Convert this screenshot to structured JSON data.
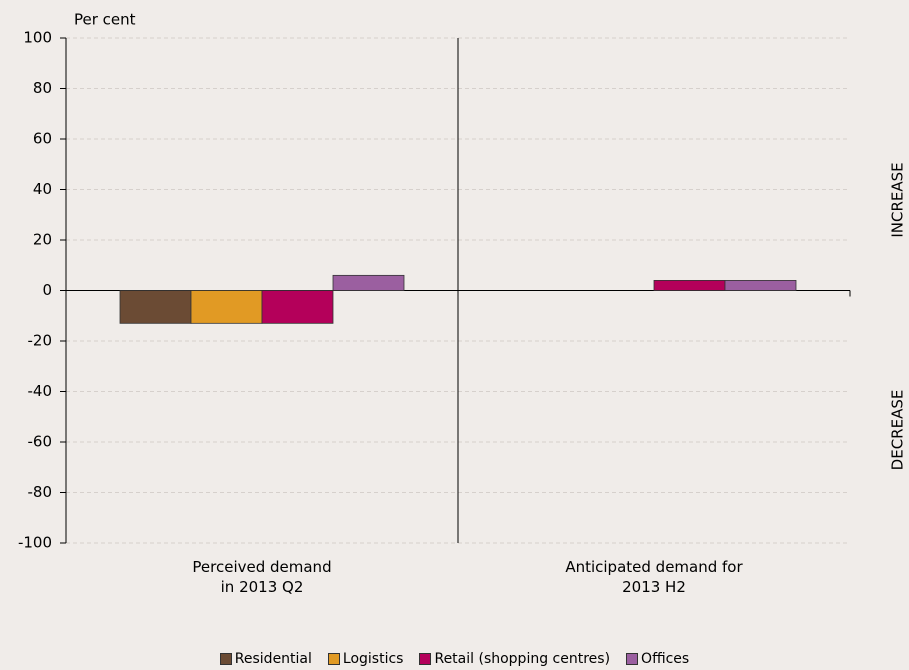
{
  "chart_data": {
    "type": "bar",
    "y_axis_label": "Per cent",
    "annotations": [
      "INCREASE",
      "DECREASE"
    ],
    "categories": [
      "Perceived demand\nin 2013 Q2",
      "Anticipated demand for\n2013 H2"
    ],
    "series": [
      {
        "name": "Residential",
        "color": "#6b4b34",
        "values": [
          -13,
          0
        ]
      },
      {
        "name": "Logistics",
        "color": "#e19a24",
        "values": [
          -13,
          0
        ]
      },
      {
        "name": "Retail (shopping centres)",
        "color": "#b4005a",
        "values": [
          -13,
          4
        ]
      },
      {
        "name": "Offices",
        "color": "#9b5fa0",
        "values": [
          6,
          4
        ]
      }
    ],
    "ylim": [
      -100,
      100
    ],
    "yticks": [
      -100,
      -80,
      -60,
      -40,
      -20,
      0,
      20,
      40,
      60,
      80,
      100
    ],
    "grid": true
  }
}
